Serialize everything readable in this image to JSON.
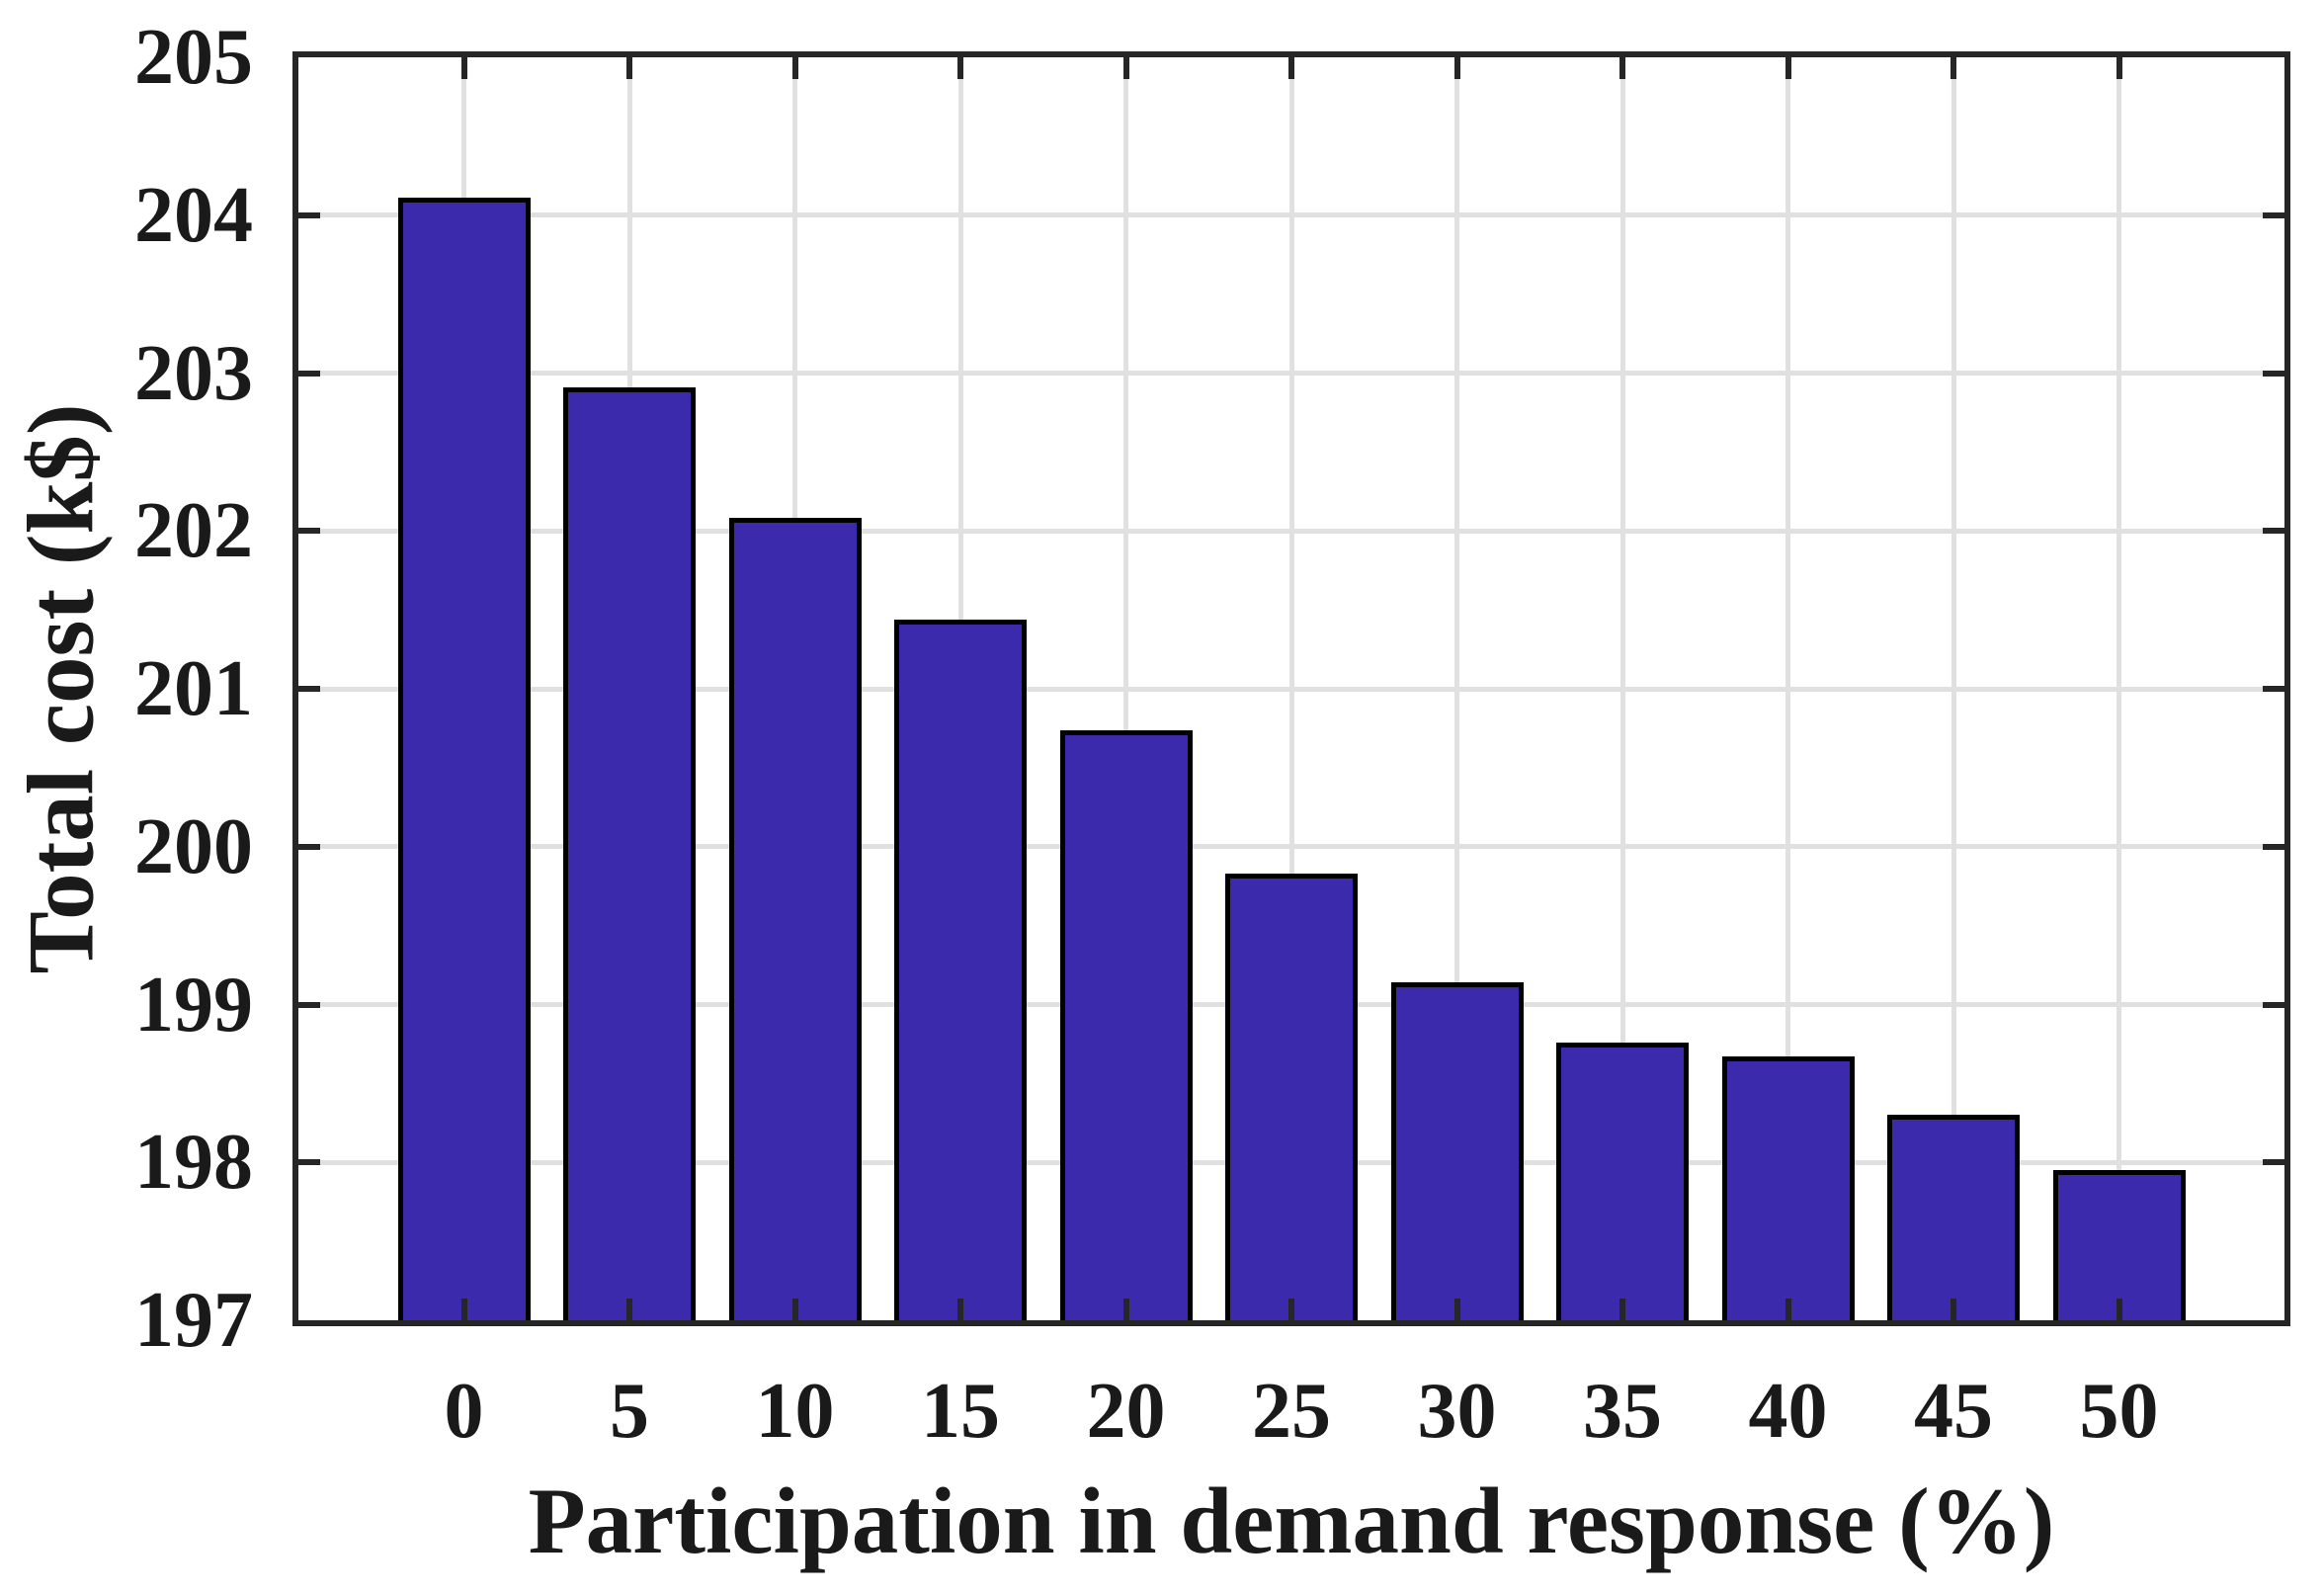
{
  "chart_data": {
    "type": "bar",
    "title": "",
    "xlabel": "Participation in demand response (%)",
    "ylabel": "Total cost (k$)",
    "categories": [
      "0",
      "5",
      "10",
      "15",
      "20",
      "25",
      "30",
      "35",
      "40",
      "45",
      "50"
    ],
    "values": [
      204.11,
      202.91,
      202.08,
      201.44,
      200.74,
      199.83,
      199.14,
      198.76,
      198.67,
      198.3,
      197.95
    ],
    "ylim": [
      197,
      205
    ],
    "ytick_labels": [
      "197",
      "198",
      "199",
      "200",
      "201",
      "202",
      "203",
      "204",
      "205"
    ],
    "grid": true,
    "legend_position": "none",
    "bar_width_fraction": 0.8,
    "colors": {
      "bar_fill": "#3B2BAC",
      "bar_edge": "#000000",
      "axis": "#262626",
      "grid": "#E0E0E0",
      "text": "#1A1A1A",
      "background": "#FFFFFF"
    }
  }
}
